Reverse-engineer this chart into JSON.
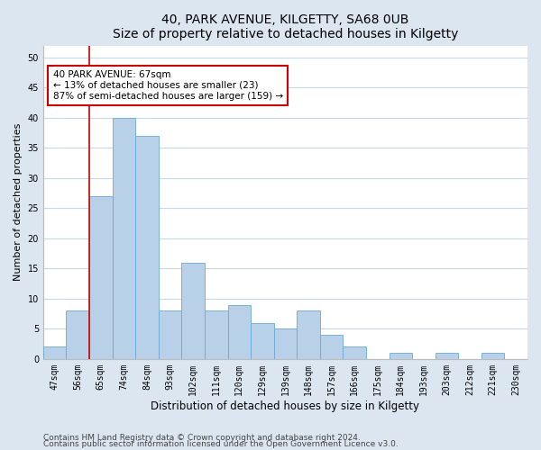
{
  "title1": "40, PARK AVENUE, KILGETTY, SA68 0UB",
  "title2": "Size of property relative to detached houses in Kilgetty",
  "xlabel": "Distribution of detached houses by size in Kilgetty",
  "ylabel": "Number of detached properties",
  "categories": [
    "47sqm",
    "56sqm",
    "65sqm",
    "74sqm",
    "84sqm",
    "93sqm",
    "102sqm",
    "111sqm",
    "120sqm",
    "129sqm",
    "139sqm",
    "148sqm",
    "157sqm",
    "166sqm",
    "175sqm",
    "184sqm",
    "193sqm",
    "203sqm",
    "212sqm",
    "221sqm",
    "230sqm"
  ],
  "values": [
    2,
    8,
    27,
    40,
    37,
    8,
    16,
    8,
    9,
    6,
    5,
    8,
    4,
    2,
    0,
    1,
    0,
    1,
    0,
    1,
    0
  ],
  "bar_color": "#b8d0e8",
  "bar_edge_color": "#6aaad4",
  "vline_x_index": 1.5,
  "vline_color": "#cc0000",
  "annotation_text": "40 PARK AVENUE: 67sqm\n← 13% of detached houses are smaller (23)\n87% of semi-detached houses are larger (159) →",
  "annotation_box_color": "#ffffff",
  "annotation_box_edge_color": "#cc0000",
  "ylim": [
    0,
    52
  ],
  "yticks": [
    0,
    5,
    10,
    15,
    20,
    25,
    30,
    35,
    40,
    45,
    50
  ],
  "footer1": "Contains HM Land Registry data © Crown copyright and database right 2024.",
  "footer2": "Contains public sector information licensed under the Open Government Licence v3.0.",
  "bg_color": "#dce6f0",
  "plot_bg_color": "#ffffff",
  "grid_color": "#c8d8e8",
  "title1_fontsize": 10,
  "title2_fontsize": 9,
  "xlabel_fontsize": 8.5,
  "ylabel_fontsize": 8,
  "tick_fontsize": 7,
  "footer_fontsize": 6.5,
  "annot_fontsize": 7.5
}
